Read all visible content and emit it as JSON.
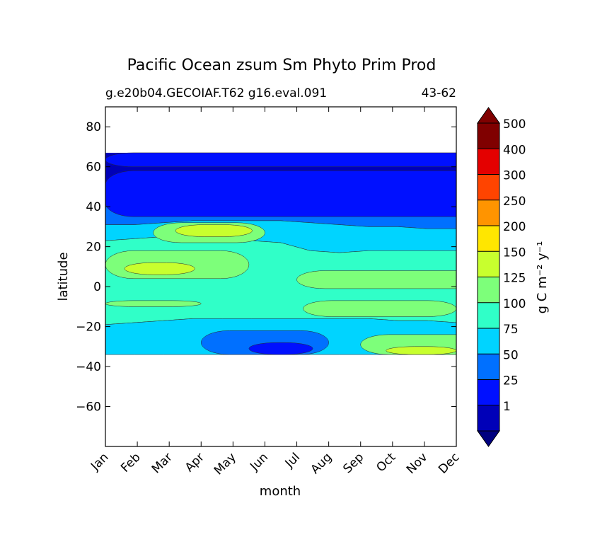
{
  "chart_data": {
    "type": "filled-contour",
    "title": "Pacific Ocean zsum Sm Phyto Prim Prod",
    "subtitle_left": "g.e20b04.GECOIAF.T62 g16.eval.091",
    "subtitle_right": "43-62",
    "xlabel": "month",
    "ylabel": "latitude",
    "x_ticks": [
      "Jan",
      "Feb",
      "Mar",
      "Apr",
      "May",
      "Jun",
      "Jul",
      "Aug",
      "Sep",
      "Oct",
      "Nov",
      "Dec"
    ],
    "ylim": [
      -80,
      90
    ],
    "y_ticks": [
      80,
      60,
      40,
      20,
      0,
      -20,
      -40,
      -60
    ],
    "y_tick_labels": [
      "80",
      "60",
      "40",
      "20",
      "0",
      "−20",
      "−40",
      "−60"
    ],
    "data_lat_range": [
      -34,
      67
    ],
    "colorbar": {
      "label": "g C m⁻² y⁻¹",
      "extend": "both",
      "under_color": "#000080",
      "over_color": "#800000",
      "levels": [
        {
          "label": "1",
          "color": "#0000b8"
        },
        {
          "label": "25",
          "color": "#0010ff"
        },
        {
          "label": "50",
          "color": "#0070ff"
        },
        {
          "label": "75",
          "color": "#00d4ff"
        },
        {
          "label": "100",
          "color": "#30ffc8"
        },
        {
          "label": "125",
          "color": "#7dff7a"
        },
        {
          "label": "150",
          "color": "#c8ff2e"
        },
        {
          "label": "200",
          "color": "#ffe600"
        },
        {
          "label": "250",
          "color": "#ff9400"
        },
        {
          "label": "300",
          "color": "#ff4400"
        },
        {
          "label": "400",
          "color": "#e40000"
        },
        {
          "label": "500",
          "color": "#800000"
        }
      ]
    },
    "regions": [
      {
        "level": "50",
        "color": "#0070ff",
        "upper": [
          50,
          50,
          49,
          48,
          48,
          49,
          49,
          48,
          46,
          44,
          42,
          38,
          35
        ],
        "lower": [
          31,
          31,
          32,
          33,
          33,
          33,
          33,
          32,
          31,
          30,
          30,
          29,
          29
        ]
      },
      {
        "level": "75",
        "color": "#00d4ff",
        "upper": [
          31,
          31,
          32,
          33,
          33,
          33,
          33,
          32,
          31,
          30,
          30,
          29,
          29
        ],
        "lower": [
          23,
          24,
          25,
          25,
          25,
          23,
          22,
          18,
          17,
          18,
          18,
          18,
          18
        ]
      },
      {
        "level": "100",
        "color": "#30ffc8",
        "upper": [
          23,
          24,
          25,
          25,
          25,
          23,
          22,
          18,
          17,
          18,
          18,
          18,
          18
        ],
        "lower": [
          -19,
          -18,
          -17,
          -16,
          -16,
          -16,
          -16,
          -16,
          -16,
          -16,
          -17,
          -17,
          -18
        ]
      },
      {
        "level": "75",
        "color": "#00d4ff",
        "upper": [
          -19,
          -18,
          -17,
          -16,
          -16,
          -16,
          -16,
          -16,
          -16,
          -16,
          -17,
          -17,
          -18
        ],
        "lower": [
          -34,
          -34,
          -34,
          -34,
          -34,
          -34,
          -34,
          -34,
          -34,
          -34,
          -34,
          -34,
          -34
        ]
      }
    ],
    "features": [
      {
        "level": "25",
        "color": "#0010ff",
        "lat_range": [
          60,
          67
        ],
        "months": [
          0,
          12
        ]
      },
      {
        "level": "25",
        "color": "#0010ff",
        "lat_range": [
          35,
          58
        ],
        "months": [
          0,
          12
        ]
      },
      {
        "level": "125",
        "color": "#7dff7a",
        "lat_range": [
          22,
          32
        ],
        "months": [
          1.5,
          5
        ]
      },
      {
        "level": "150",
        "color": "#c8ff2e",
        "lat_range": [
          25,
          31
        ],
        "months": [
          2.2,
          4.6
        ]
      },
      {
        "level": "125",
        "color": "#7dff7a",
        "lat_range": [
          4,
          18
        ],
        "months": [
          0,
          4.5
        ]
      },
      {
        "level": "150",
        "color": "#c8ff2e",
        "lat_range": [
          6,
          12
        ],
        "months": [
          0.6,
          2.8
        ]
      },
      {
        "level": "125",
        "color": "#7dff7a",
        "lat_range": [
          -1,
          8
        ],
        "months": [
          6,
          12
        ]
      },
      {
        "level": "125",
        "color": "#7dff7a",
        "lat_range": [
          -15,
          -7
        ],
        "months": [
          6.2,
          11
        ]
      },
      {
        "level": "125",
        "color": "#7dff7a",
        "lat_range": [
          -10,
          -7
        ],
        "months": [
          0,
          3
        ]
      },
      {
        "level": "50",
        "color": "#0070ff",
        "lat_range": [
          -34,
          -22
        ],
        "months": [
          3,
          7
        ]
      },
      {
        "level": "25",
        "color": "#0010ff",
        "lat_range": [
          -34,
          -28
        ],
        "months": [
          4.5,
          6.5
        ]
      },
      {
        "level": "125",
        "color": "#7dff7a",
        "lat_range": [
          -34,
          -24
        ],
        "months": [
          8,
          12
        ]
      },
      {
        "level": "150",
        "color": "#c8ff2e",
        "lat_range": [
          -34,
          -30
        ],
        "months": [
          8.8,
          11
        ]
      }
    ]
  }
}
